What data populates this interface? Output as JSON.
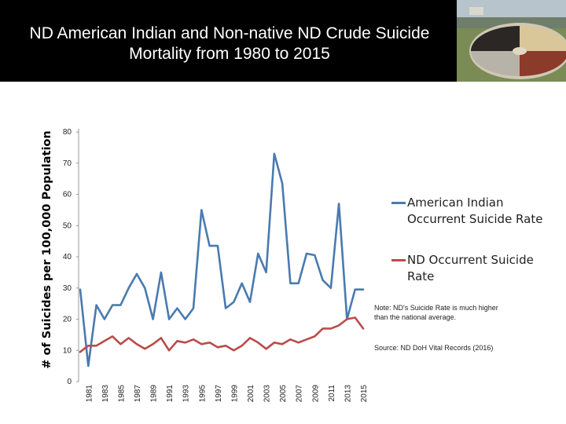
{
  "slide": {
    "title_line1": "ND American Indian and Non-native ND Crude Suicide",
    "title_line2": "Mortality from 1980 to 2015",
    "note": "Note: ND's Suicide Rate is much higher than the national average.",
    "source": "Source: ND DoH Vital Records (2016)"
  },
  "colors": {
    "header_bg": "#000000",
    "title_text": "#ffffff",
    "american_indian": "#4a7ab0",
    "nd": "#b94c4a"
  },
  "chart_data": {
    "type": "line",
    "title": "ND American Indian and Non-native ND Crude Suicide Mortality from 1980 to 2015",
    "xlabel": "",
    "ylabel": "# of Suicides per 100,000 Population",
    "ylim": [
      0,
      80
    ],
    "yticks": [
      0,
      10,
      20,
      30,
      40,
      50,
      60,
      70,
      80
    ],
    "grid": false,
    "legend_position": "right",
    "x": [
      1980,
      1981,
      1982,
      1983,
      1984,
      1985,
      1986,
      1987,
      1988,
      1989,
      1990,
      1991,
      1992,
      1993,
      1994,
      1995,
      1996,
      1997,
      1998,
      1999,
      2000,
      2001,
      2002,
      2003,
      2004,
      2005,
      2006,
      2007,
      2008,
      2009,
      2010,
      2011,
      2012,
      2013,
      2014,
      2015
    ],
    "x_tick_labels": [
      "1981",
      "1983",
      "1985",
      "1987",
      "1989",
      "1991",
      "1993",
      "1995",
      "1997",
      "1999",
      "2001",
      "2003",
      "2005",
      "2007",
      "2009",
      "2011",
      "2013",
      "2015"
    ],
    "x_tick_values": [
      1981,
      1983,
      1985,
      1987,
      1989,
      1991,
      1993,
      1995,
      1997,
      1999,
      2001,
      2003,
      2005,
      2007,
      2009,
      2011,
      2013,
      2015
    ],
    "series": [
      {
        "name": "American Indian Occurrent Suicide Rate",
        "color": "#4a7ab0",
        "values": [
          29.5,
          5,
          24.5,
          20,
          24.5,
          24.5,
          30,
          34.5,
          30,
          20,
          35,
          20,
          23.5,
          20,
          23.5,
          55,
          43.5,
          43.5,
          23.5,
          25.5,
          31.5,
          25.5,
          41,
          35,
          73,
          63.5,
          31.5,
          31.5,
          41,
          40.5,
          32.5,
          30,
          57,
          20,
          29.5,
          29.5
        ]
      },
      {
        "name": "ND Occurrent Suicide Rate",
        "color": "#b94c4a",
        "values": [
          9.5,
          11.5,
          11.5,
          13,
          14.5,
          12,
          14,
          12,
          10.5,
          12,
          14,
          10,
          13,
          12.5,
          13.5,
          12,
          12.5,
          11,
          11.5,
          10,
          11.5,
          14,
          12.5,
          10.5,
          12.5,
          12,
          13.5,
          12.5,
          13.5,
          14.5,
          17,
          17,
          18,
          20,
          20.5,
          17
        ]
      }
    ]
  }
}
